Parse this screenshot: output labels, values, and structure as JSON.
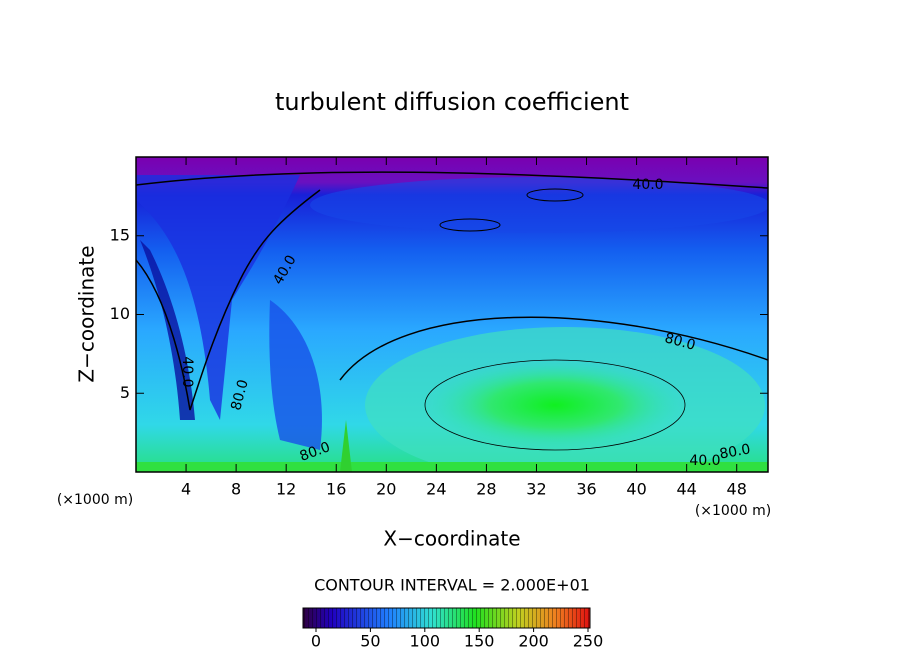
{
  "chart_data": {
    "type": "contour",
    "title": "turbulent diffusion coefficient",
    "x_label": "X−coordinate",
    "y_label": "Z−coordinate",
    "x_unit_label": "(×1000 m)",
    "xlim": [
      0,
      50.5
    ],
    "xticks": [
      4,
      8,
      12,
      16,
      20,
      24,
      28,
      32,
      36,
      40,
      44,
      48
    ],
    "ylim": [
      0,
      20
    ],
    "yticks": [
      5,
      10,
      15
    ],
    "contour_labels": [
      {
        "value": 40,
        "label": "40.0"
      },
      {
        "value": 40,
        "label": "40.0"
      },
      {
        "value": 40,
        "label": "40.0"
      },
      {
        "value": 80,
        "label": "80.0"
      },
      {
        "value": 80,
        "label": "80.0"
      },
      {
        "value": 80,
        "label": "80.0"
      },
      {
        "value": 80,
        "label": "80.0"
      },
      {
        "value": 40,
        "label": "40.0"
      }
    ],
    "colorbar_title": "CONTOUR INTERVAL = 2.000E+01",
    "clim": [
      0,
      250
    ],
    "cticks": [
      0,
      50,
      100,
      150,
      200,
      250
    ]
  }
}
